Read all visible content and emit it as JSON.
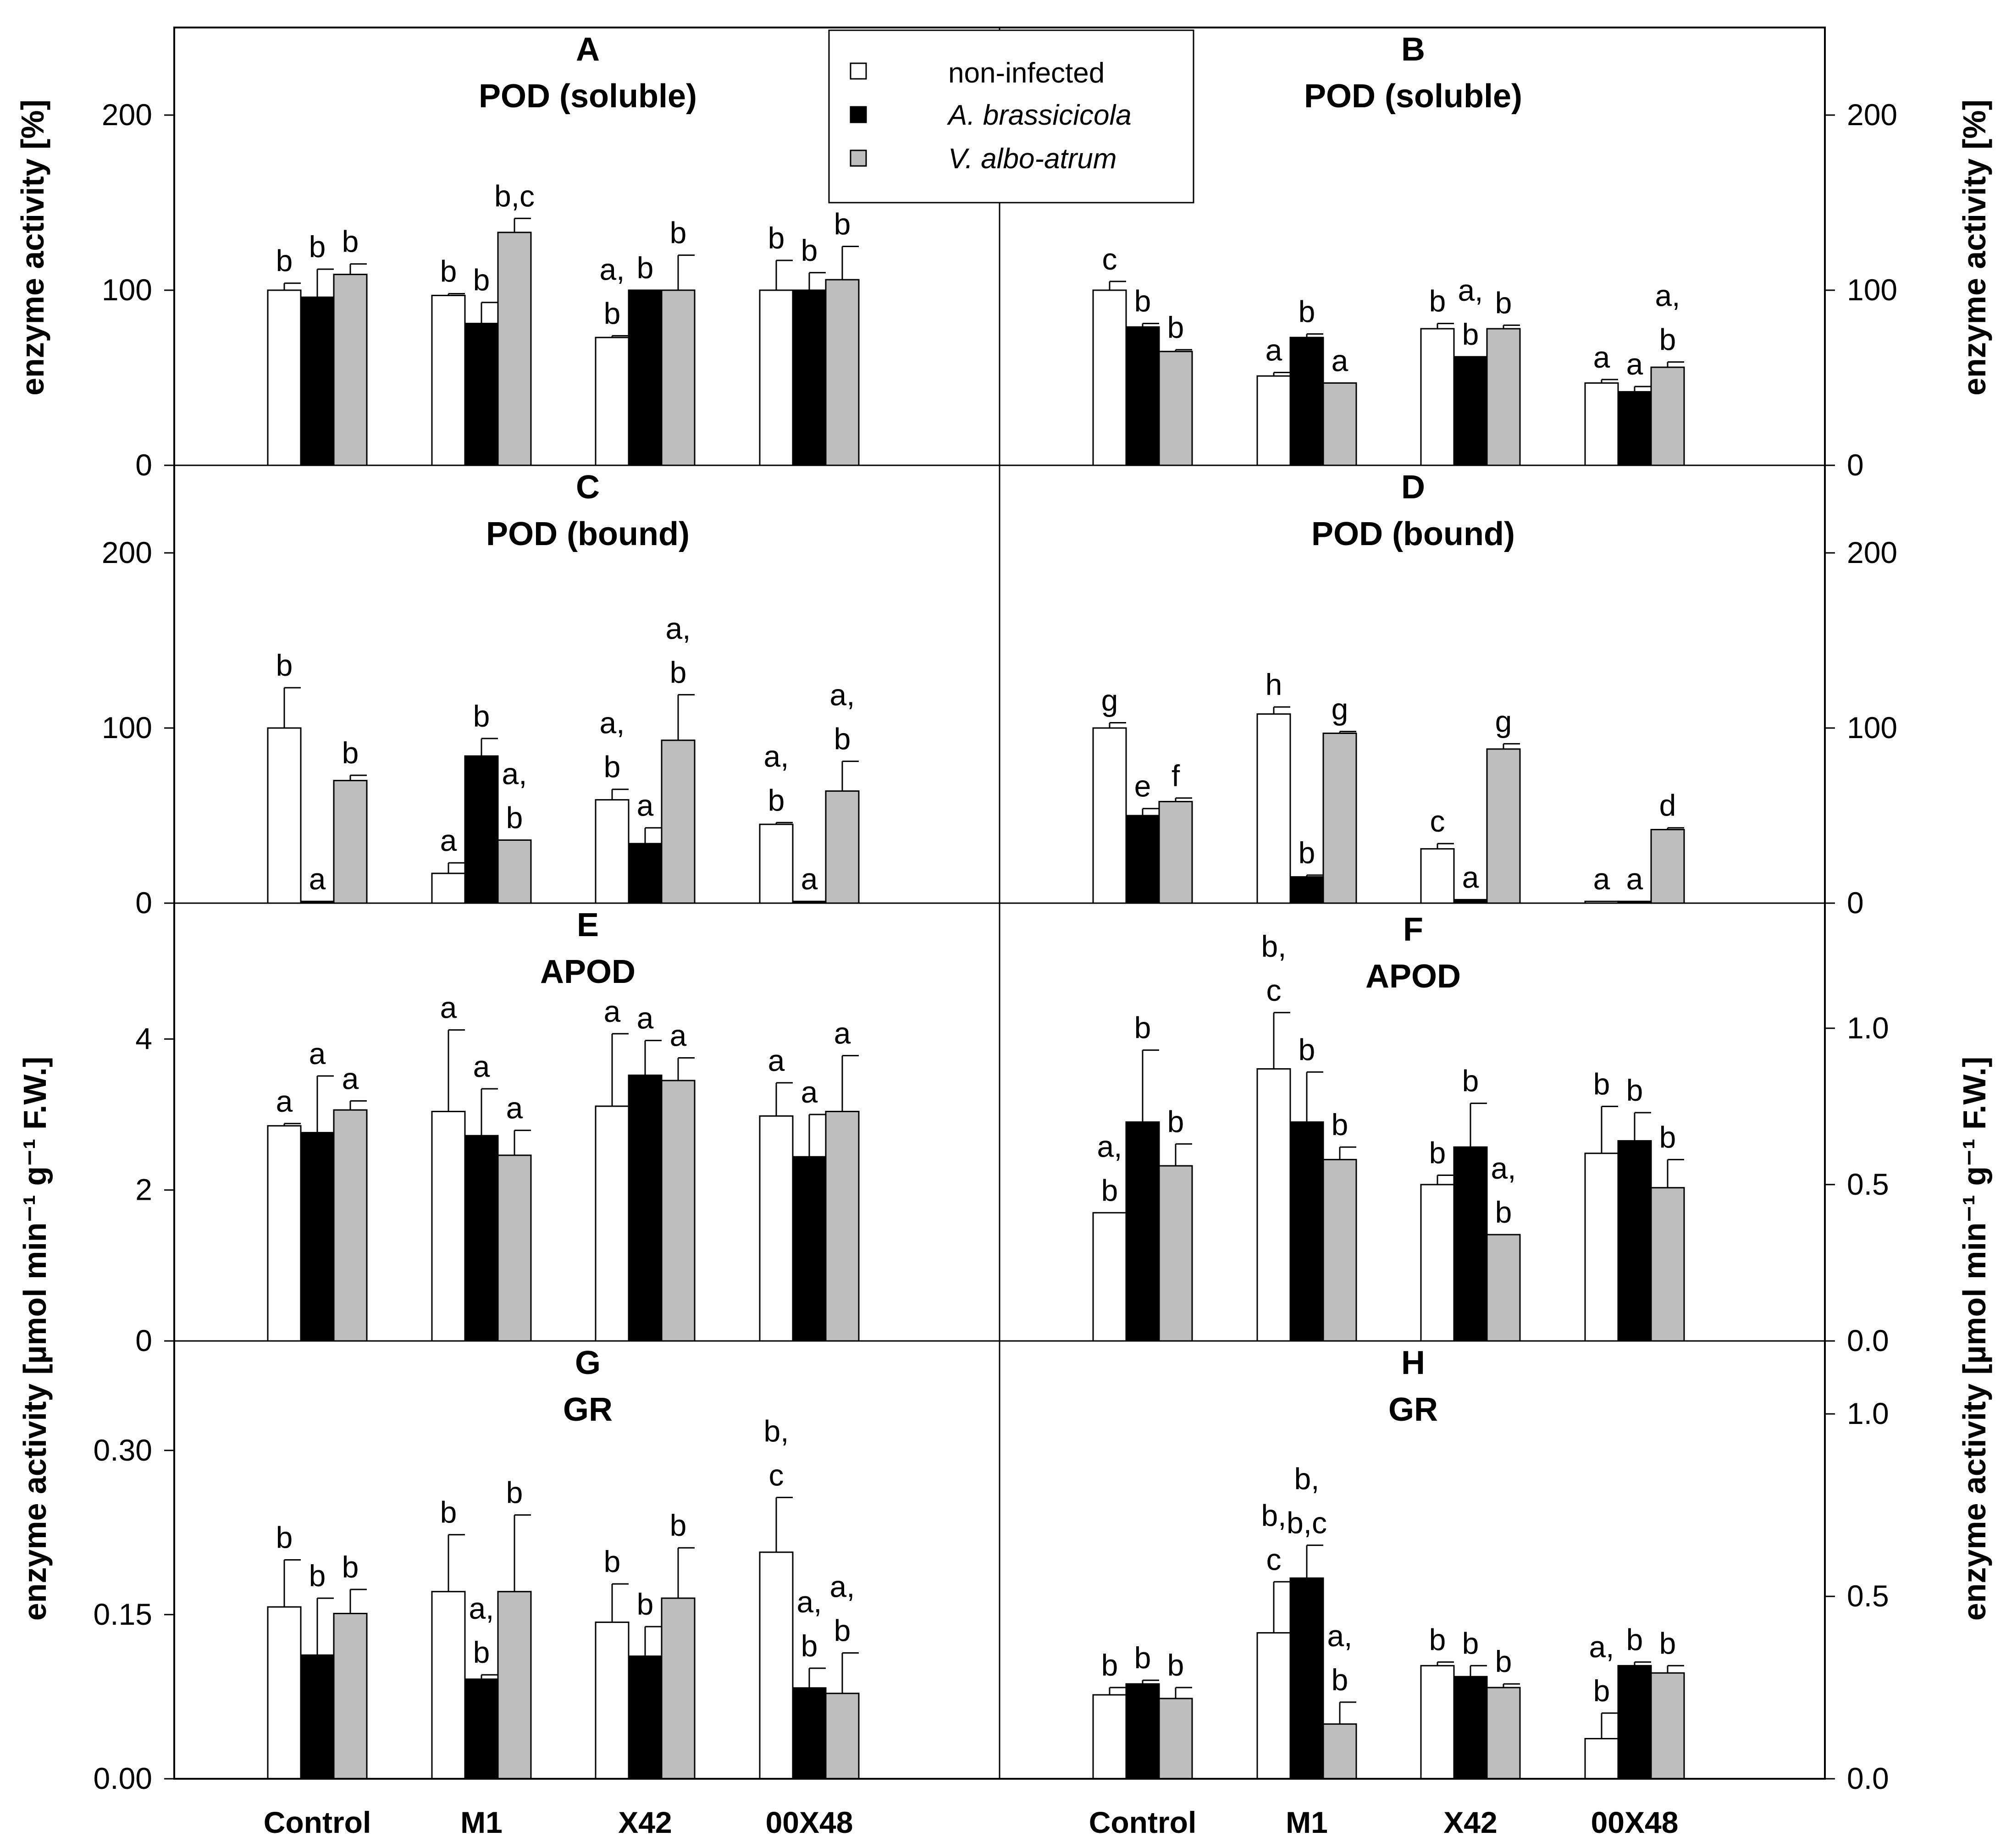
{
  "colors": {
    "non_infected": "#ffffff",
    "a_brassicicola": "#000000",
    "v_albo_atrum": "#bebebe",
    "axis": "#000000"
  },
  "y_labels": {
    "left_top": "enzyme activity [%]",
    "right_top": "enzyme activity [%]",
    "left_bottom": "enzyme activity [µmol min⁻¹ g⁻¹ F.W.]",
    "right_bottom": "enzyme activity [µmol min⁻¹ g⁻¹ F.W.]"
  },
  "chart_data": [
    {
      "type": "bar",
      "panel": "A",
      "title": "POD (soluble)",
      "categories": [
        "Control",
        "M1",
        "X42",
        "00X48"
      ],
      "ylim": [
        0,
        250
      ],
      "yticks": [
        "0",
        "100",
        "200"
      ],
      "series": [
        {
          "name": "non-infected",
          "values": [
            100,
            97,
            73,
            100
          ],
          "errors": [
            4,
            1,
            1,
            17
          ],
          "labels": [
            "b",
            "b",
            "a,|b",
            "b"
          ]
        },
        {
          "name": "A. brassicicola",
          "values": [
            96,
            81,
            100,
            100
          ],
          "errors": [
            16,
            12,
            0,
            10
          ],
          "labels": [
            "b",
            "b",
            "b",
            "b"
          ]
        },
        {
          "name": "V. albo-atrum",
          "values": [
            109,
            133,
            100,
            106
          ],
          "errors": [
            6,
            8,
            20,
            19
          ],
          "labels": [
            "b",
            "b,c",
            "b",
            "b"
          ]
        }
      ]
    },
    {
      "type": "bar",
      "panel": "B",
      "title": "POD (soluble)",
      "categories": [
        "Control",
        "M1",
        "X42",
        "00X48"
      ],
      "ylim": [
        0,
        250
      ],
      "yticks": [
        "0",
        "100",
        "200"
      ],
      "series": [
        {
          "name": "non-infected",
          "values": [
            100,
            51,
            78,
            47
          ],
          "errors": [
            5,
            2,
            3,
            2
          ],
          "labels": [
            "c",
            "a",
            "b",
            "a"
          ]
        },
        {
          "name": "A. brassicicola",
          "values": [
            79,
            73,
            62,
            42
          ],
          "errors": [
            2,
            2,
            0,
            3
          ],
          "labels": [
            "b",
            "b",
            "a,|b",
            "a"
          ]
        },
        {
          "name": "V. albo-atrum",
          "values": [
            65,
            47,
            78,
            56
          ],
          "errors": [
            1,
            0,
            2,
            3
          ],
          "labels": [
            "b",
            "a",
            "b",
            "a,|b"
          ]
        }
      ]
    },
    {
      "type": "bar",
      "panel": "C",
      "title": "POD (bound)",
      "categories": [
        "Control",
        "M1",
        "X42",
        "00X48"
      ],
      "ylim": [
        0,
        250
      ],
      "yticks": [
        "0",
        "100",
        "200"
      ],
      "series": [
        {
          "name": "non-infected",
          "values": [
            100,
            17,
            59,
            45
          ],
          "errors": [
            23,
            6,
            6,
            1
          ],
          "labels": [
            "b",
            "a",
            "a,|b",
            "a,|b"
          ]
        },
        {
          "name": "A. brassicicola",
          "values": [
            1,
            84,
            34,
            1
          ],
          "errors": [
            0,
            10,
            9,
            0
          ],
          "labels": [
            "a",
            "b",
            "a",
            "a"
          ]
        },
        {
          "name": "V. albo-atrum",
          "values": [
            70,
            36,
            93,
            64
          ],
          "errors": [
            3,
            0,
            26,
            17
          ],
          "labels": [
            "b",
            "a,|b",
            "a,|b",
            "a,|b"
          ]
        }
      ]
    },
    {
      "type": "bar",
      "panel": "D",
      "title": "POD (bound)",
      "categories": [
        "Control",
        "M1",
        "X42",
        "00X48"
      ],
      "ylim": [
        0,
        250
      ],
      "yticks": [
        "0",
        "100",
        "200"
      ],
      "series": [
        {
          "name": "non-infected",
          "values": [
            100,
            108,
            31,
            1
          ],
          "errors": [
            3,
            4,
            3,
            0
          ],
          "labels": [
            "g",
            "h",
            "c",
            "a"
          ]
        },
        {
          "name": "A. brassicicola",
          "values": [
            50,
            15,
            2,
            1
          ],
          "errors": [
            4,
            1,
            0,
            0
          ],
          "labels": [
            "e",
            "b",
            "a",
            "a"
          ]
        },
        {
          "name": "V. albo-atrum",
          "values": [
            58,
            97,
            88,
            42
          ],
          "errors": [
            2,
            1,
            3,
            1
          ],
          "labels": [
            "f",
            "g",
            "g",
            "d"
          ]
        }
      ]
    },
    {
      "type": "bar",
      "panel": "E",
      "title": "APOD",
      "categories": [
        "Control",
        "M1",
        "X42",
        "00X48"
      ],
      "ylim": [
        0,
        5.8
      ],
      "yticks": [
        "0",
        "2",
        "4"
      ],
      "series": [
        {
          "name": "non-infected",
          "values": [
            2.85,
            3.04,
            3.11,
            2.98
          ],
          "errors": [
            0.03,
            1.08,
            0.96,
            0.44
          ],
          "labels": [
            "a",
            "a",
            "a",
            "a"
          ]
        },
        {
          "name": "A. brassicicola",
          "values": [
            2.76,
            2.72,
            3.52,
            2.44
          ],
          "errors": [
            0.75,
            0.62,
            0.46,
            0.56
          ],
          "labels": [
            "a",
            "a",
            "a",
            "a"
          ]
        },
        {
          "name": "V. albo-atrum",
          "values": [
            3.06,
            2.46,
            3.45,
            3.04
          ],
          "errors": [
            0.12,
            0.33,
            0.3,
            0.74
          ],
          "labels": [
            "a",
            "a",
            "a",
            "a"
          ]
        }
      ]
    },
    {
      "type": "bar",
      "panel": "F",
      "title": "APOD",
      "categories": [
        "Control",
        "M1",
        "X42",
        "00X48"
      ],
      "ylim": [
        0,
        1.4
      ],
      "yticks": [
        "0.0",
        "0.5",
        "1.0"
      ],
      "series": [
        {
          "name": "non-infected",
          "values": [
            0.41,
            0.87,
            0.5,
            0.6
          ],
          "errors": [
            0,
            0.18,
            0.03,
            0.15
          ],
          "labels": [
            "a,|b",
            "b,|c",
            "b",
            "b"
          ]
        },
        {
          "name": "A. brassicicola",
          "values": [
            0.7,
            0.7,
            0.62,
            0.64
          ],
          "errors": [
            0.23,
            0.16,
            0.14,
            0.09
          ],
          "labels": [
            "b",
            "b",
            "b",
            "b"
          ]
        },
        {
          "name": "V. albo-atrum",
          "values": [
            0.56,
            0.58,
            0.34,
            0.49
          ],
          "errors": [
            0.07,
            0.04,
            0,
            0.09
          ],
          "labels": [
            "b",
            "b",
            "a,|b",
            "b"
          ]
        }
      ]
    },
    {
      "type": "bar",
      "panel": "G",
      "title": "GR",
      "categories": [
        "Control",
        "M1",
        "X42",
        "00X48"
      ],
      "ylim": [
        0,
        0.4
      ],
      "yticks": [
        "0.00",
        "0.15",
        "0.30"
      ],
      "series": [
        {
          "name": "non-infected",
          "values": [
            0.157,
            0.171,
            0.143,
            0.207
          ],
          "errors": [
            0.043,
            0.052,
            0.035,
            0.05
          ],
          "labels": [
            "b",
            "b",
            "b",
            "b,|c"
          ]
        },
        {
          "name": "A. brassicicola",
          "values": [
            0.113,
            0.091,
            0.112,
            0.083
          ],
          "errors": [
            0.052,
            0.004,
            0.027,
            0.018
          ],
          "labels": [
            "b",
            "a,|b",
            "b",
            "a,|b"
          ]
        },
        {
          "name": "V. albo-atrum",
          "values": [
            0.151,
            0.171,
            0.165,
            0.078
          ],
          "errors": [
            0.022,
            0.07,
            0.046,
            0.037
          ],
          "labels": [
            "b",
            "b",
            "b",
            "a,|b"
          ]
        }
      ]
    },
    {
      "type": "bar",
      "panel": "H",
      "title": "GR",
      "categories": [
        "Control",
        "M1",
        "X42",
        "00X48"
      ],
      "ylim": [
        0,
        1.2
      ],
      "yticks": [
        "0.0",
        "0.5",
        "1.0"
      ],
      "series": [
        {
          "name": "non-infected",
          "values": [
            0.23,
            0.4,
            0.31,
            0.11
          ],
          "errors": [
            0.02,
            0.14,
            0.01,
            0.07
          ],
          "labels": [
            "b",
            "b,|c",
            "b",
            "a,|b"
          ]
        },
        {
          "name": "A. brassicicola",
          "values": [
            0.26,
            0.55,
            0.28,
            0.31
          ],
          "errors": [
            0.01,
            0.09,
            0.03,
            0.01
          ],
          "labels": [
            "b",
            "b,|b,c",
            "b",
            "b"
          ]
        },
        {
          "name": "V. albo-atrum",
          "values": [
            0.22,
            0.15,
            0.25,
            0.29
          ],
          "errors": [
            0.03,
            0.06,
            0.01,
            0.02
          ],
          "labels": [
            "b",
            "a,|b",
            "b",
            "b"
          ]
        }
      ]
    }
  ],
  "legend": {
    "items": [
      {
        "label": "non-infected"
      },
      {
        "label": "A. brassicicola"
      },
      {
        "label": "V. albo-atrum"
      }
    ]
  }
}
